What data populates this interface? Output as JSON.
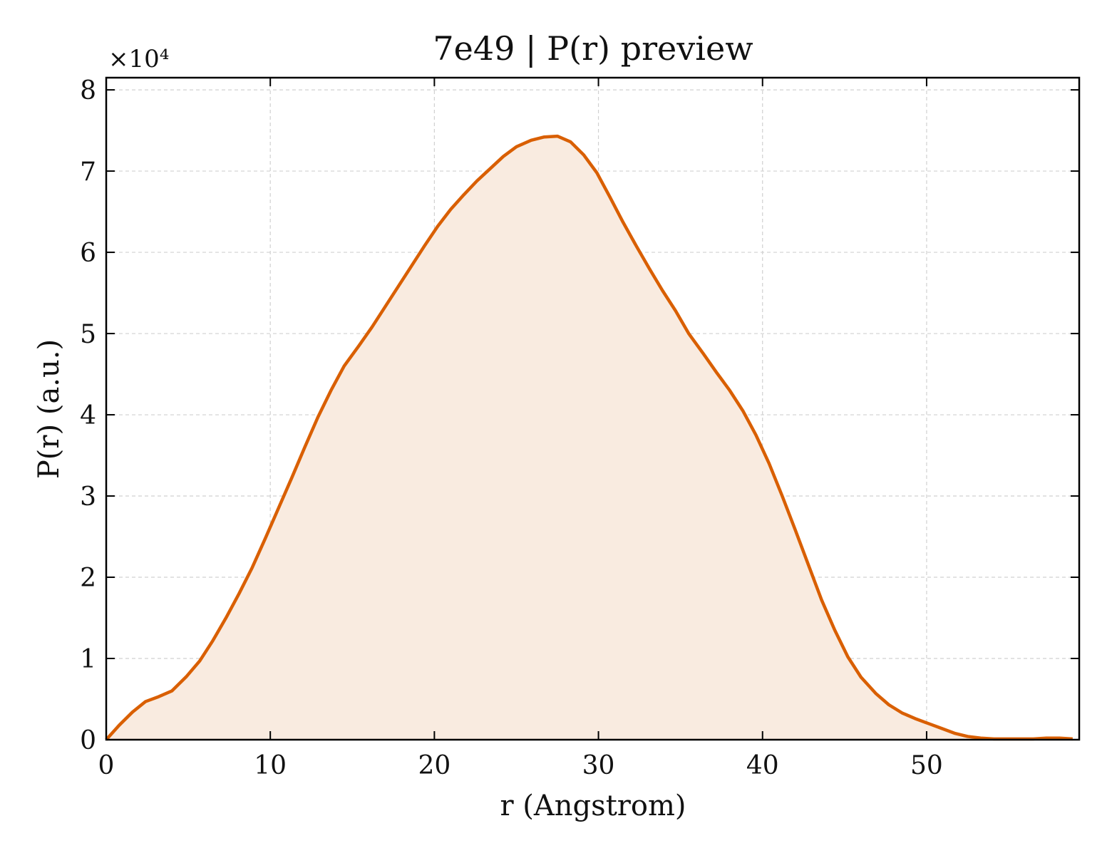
{
  "chart_data": {
    "type": "area",
    "title": "7e49 | P(r) preview",
    "xlabel": "r (Angstrom)",
    "ylabel": "P(r) (a.u.)",
    "y_multiplier_label": "×10⁴",
    "xlim": [
      0,
      59.3
    ],
    "ylim": [
      0,
      8.15
    ],
    "x_ticks": [
      0,
      10,
      20,
      30,
      40,
      50
    ],
    "y_ticks": [
      0,
      1,
      2,
      3,
      4,
      5,
      6,
      7,
      8
    ],
    "grid": true,
    "legend": "none",
    "colors": {
      "line": "#d95f02",
      "fill": "#f9ebe0",
      "grid": "#d0d0d0",
      "axis": "#000000"
    },
    "series": [
      {
        "x": [
          0,
          0.8,
          1.6,
          2.4,
          3.2,
          4.0,
          4.9,
          5.7,
          6.5,
          7.3,
          8.1,
          8.9,
          9.7,
          10.5,
          11.3,
          12.1,
          12.9,
          13.7,
          14.5,
          15.4,
          16.2,
          17.0,
          17.8,
          18.6,
          19.4,
          20.2,
          21.0,
          21.8,
          22.6,
          23.4,
          24.2,
          25.0,
          25.9,
          26.7,
          27.5,
          28.3,
          29.1,
          29.9,
          30.7,
          31.5,
          32.3,
          33.1,
          33.9,
          34.7,
          35.5,
          36.4,
          37.2,
          38.0,
          38.8,
          39.6,
          40.4,
          41.2,
          42.0,
          42.8,
          43.6,
          44.4,
          45.2,
          46.0,
          46.9,
          47.7,
          48.5,
          49.3,
          50.1,
          50.9,
          51.7,
          52.5,
          53.3,
          54.1,
          54.9,
          55.7,
          56.5,
          57.3,
          58.1,
          58.9
        ],
        "values": [
          0.0,
          0.18,
          0.34,
          0.47,
          0.53,
          0.6,
          0.78,
          0.97,
          1.22,
          1.5,
          1.8,
          2.12,
          2.48,
          2.85,
          3.22,
          3.6,
          3.97,
          4.3,
          4.6,
          4.85,
          5.08,
          5.33,
          5.58,
          5.83,
          6.08,
          6.32,
          6.53,
          6.71,
          6.88,
          7.03,
          7.18,
          7.3,
          7.38,
          7.42,
          7.43,
          7.36,
          7.2,
          6.98,
          6.68,
          6.37,
          6.08,
          5.8,
          5.53,
          5.28,
          5.0,
          4.75,
          4.52,
          4.3,
          4.05,
          3.75,
          3.4,
          3.0,
          2.58,
          2.15,
          1.72,
          1.35,
          1.02,
          0.77,
          0.57,
          0.43,
          0.33,
          0.26,
          0.2,
          0.14,
          0.08,
          0.04,
          0.02,
          0.01,
          0.01,
          0.01,
          0.01,
          0.02,
          0.02,
          0.01
        ]
      }
    ]
  }
}
